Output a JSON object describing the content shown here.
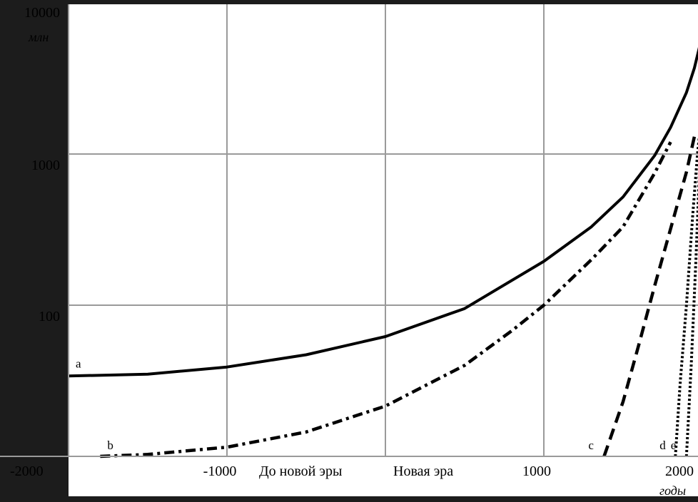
{
  "chart_data": {
    "type": "line",
    "title": "",
    "xlabel": "годы",
    "ylabel": "млн",
    "ylim": [
      10,
      10000
    ],
    "xlim": [
      -2000,
      2000
    ],
    "y_scale": "log",
    "grid": true,
    "legend": "none",
    "x_ticks": [
      {
        "value": -2000,
        "label": "-2000"
      },
      {
        "value": -1000,
        "label": "-1000"
      },
      {
        "value": 1000,
        "label": "1000"
      },
      {
        "value": 2000,
        "label": "2000"
      }
    ],
    "x_gridlines": [
      -1000,
      0,
      1000
    ],
    "y_ticks": [
      {
        "value": 100,
        "label": "100"
      },
      {
        "value": 1000,
        "label": "1000"
      },
      {
        "value": 10000,
        "label": "10000"
      }
    ],
    "era_labels": {
      "before": "До новой эры",
      "after": "Новая эра"
    },
    "colors": {
      "background": "#1c1c1c",
      "plot": "#ffffff",
      "grid": "#9a9a9a",
      "line": "#000000"
    },
    "series": [
      {
        "name": "a",
        "style": "solid",
        "x": [
          -2000,
          -1500,
          -1000,
          -500,
          0,
          500,
          1000,
          1300,
          1500,
          1700,
          1800,
          1900,
          1950,
          1980,
          2000
        ],
        "y": [
          34,
          35,
          39,
          47,
          62,
          95,
          195,
          330,
          520,
          980,
          1500,
          2550,
          3700,
          5000,
          6000
        ]
      },
      {
        "name": "b",
        "style": "dashdot",
        "x": [
          -1800,
          -1500,
          -1000,
          -500,
          0,
          500,
          800,
          1000,
          1300,
          1500,
          1700,
          1800
        ],
        "y": [
          10,
          10.3,
          11.5,
          14.5,
          21.5,
          40,
          68,
          100,
          200,
          330,
          750,
          1200
        ]
      },
      {
        "name": "c",
        "style": "dashed",
        "x": [
          1380,
          1500,
          1600,
          1700,
          1800,
          1900,
          1950
        ],
        "y": [
          10,
          23,
          55,
          135,
          320,
          760,
          1300
        ]
      },
      {
        "name": "d",
        "style": "dotted",
        "x": [
          1830,
          1860,
          1900,
          1940,
          1970,
          2000
        ],
        "y": [
          10,
          30,
          100,
          400,
          1000,
          2000
        ]
      },
      {
        "name": "e",
        "style": "dotted",
        "x": [
          1900,
          1930,
          1960,
          1980,
          2000
        ],
        "y": [
          10,
          40,
          200,
          700,
          2200
        ]
      }
    ]
  }
}
